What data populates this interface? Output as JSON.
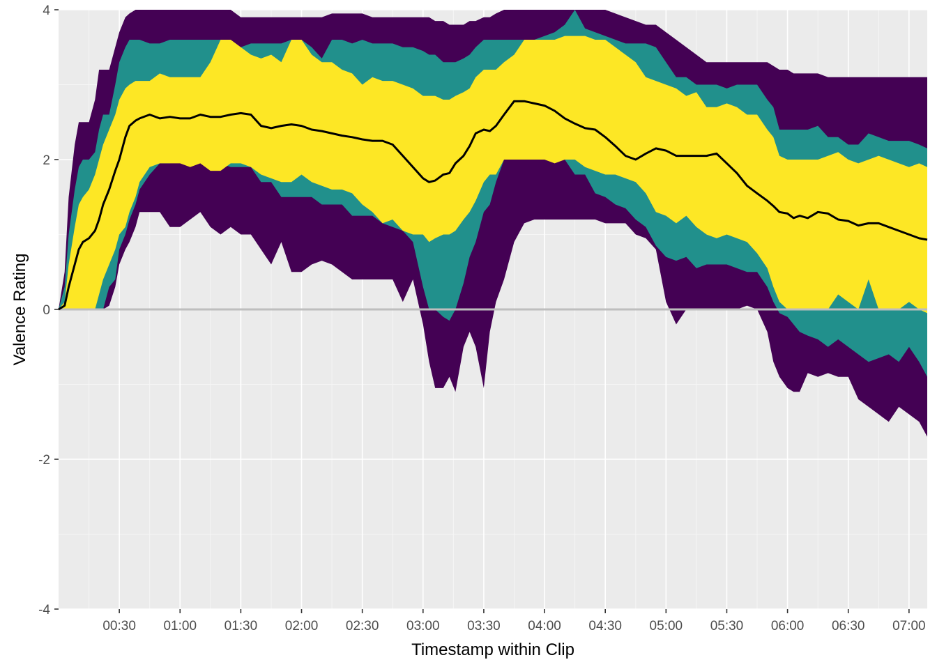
{
  "chart_data": {
    "type": "area",
    "xlabel": "Timestamp within Clip",
    "ylabel": "Valence Rating",
    "x_unit": "seconds",
    "xlim": [
      0,
      429
    ],
    "ylim": [
      -4,
      4
    ],
    "x_ticks": [
      {
        "value": 30,
        "label": "00:30"
      },
      {
        "value": 60,
        "label": "01:00"
      },
      {
        "value": 90,
        "label": "01:30"
      },
      {
        "value": 120,
        "label": "02:00"
      },
      {
        "value": 150,
        "label": "02:30"
      },
      {
        "value": 180,
        "label": "03:00"
      },
      {
        "value": 210,
        "label": "03:30"
      },
      {
        "value": 240,
        "label": "04:00"
      },
      {
        "value": 270,
        "label": "04:30"
      },
      {
        "value": 300,
        "label": "05:00"
      },
      {
        "value": 330,
        "label": "05:30"
      },
      {
        "value": 360,
        "label": "06:00"
      },
      {
        "value": 390,
        "label": "06:30"
      },
      {
        "value": 420,
        "label": "07:00"
      }
    ],
    "y_ticks": [
      {
        "value": -4,
        "label": "-4"
      },
      {
        "value": -2,
        "label": "-2"
      },
      {
        "value": 0,
        "label": "0"
      },
      {
        "value": 2,
        "label": "2"
      },
      {
        "value": 4,
        "label": "4"
      }
    ],
    "reference_line": {
      "y": 0,
      "color": "#bebebe"
    },
    "grid": true,
    "legend": "none",
    "x": [
      0,
      3,
      5,
      8,
      10,
      12,
      15,
      18,
      20,
      22,
      25,
      28,
      30,
      33,
      35,
      38,
      40,
      45,
      50,
      55,
      60,
      65,
      70,
      75,
      80,
      85,
      90,
      95,
      100,
      105,
      110,
      115,
      120,
      125,
      130,
      135,
      140,
      145,
      150,
      155,
      160,
      165,
      170,
      175,
      180,
      183,
      186,
      190,
      193,
      196,
      200,
      203,
      206,
      210,
      213,
      216,
      220,
      225,
      230,
      235,
      240,
      245,
      250,
      255,
      260,
      265,
      270,
      275,
      280,
      285,
      290,
      295,
      300,
      305,
      310,
      315,
      320,
      325,
      330,
      335,
      340,
      345,
      350,
      353,
      356,
      360,
      363,
      366,
      370,
      375,
      380,
      385,
      390,
      395,
      400,
      405,
      410,
      415,
      420,
      425,
      429
    ],
    "series": [
      {
        "name": "",
        "color": "#440154",
        "upper": [
          0,
          0.5,
          1.5,
          2.2,
          2.5,
          2.5,
          2.5,
          2.8,
          3.2,
          3.2,
          3.2,
          3.5,
          3.7,
          3.9,
          3.95,
          4,
          4,
          4,
          4,
          4,
          4,
          4,
          4,
          4,
          4,
          4,
          3.9,
          3.9,
          3.9,
          3.9,
          3.9,
          3.9,
          3.9,
          3.9,
          3.9,
          3.95,
          3.95,
          3.95,
          3.95,
          3.9,
          3.9,
          3.9,
          3.9,
          3.9,
          3.9,
          3.9,
          3.85,
          3.85,
          3.8,
          3.8,
          3.8,
          3.85,
          3.85,
          3.9,
          3.9,
          3.95,
          4,
          4,
          4,
          4,
          4,
          4,
          4,
          4,
          4,
          4,
          4,
          3.95,
          3.9,
          3.85,
          3.8,
          3.8,
          3.7,
          3.6,
          3.5,
          3.4,
          3.3,
          3.3,
          3.3,
          3.3,
          3.3,
          3.3,
          3.3,
          3.25,
          3.2,
          3.2,
          3.15,
          3.15,
          3.15,
          3.15,
          3.1,
          3.1,
          3.1,
          3.1,
          3.1,
          3.1,
          3.1,
          3.1,
          3.1,
          3.1,
          3.1
        ],
        "lower": [
          0,
          0,
          0,
          0,
          0,
          0,
          0,
          0,
          0,
          0,
          0.05,
          0.3,
          0.6,
          0.8,
          0.9,
          1.1,
          1.3,
          1.3,
          1.3,
          1.1,
          1.1,
          1.2,
          1.3,
          1.1,
          1.0,
          1.1,
          1.0,
          1.0,
          0.8,
          0.6,
          0.9,
          0.5,
          0.5,
          0.6,
          0.65,
          0.6,
          0.5,
          0.4,
          0.4,
          0.4,
          0.4,
          0.4,
          0.1,
          0.4,
          -0.2,
          -0.7,
          -1.05,
          -1.05,
          -0.9,
          -1.1,
          -0.5,
          -0.3,
          -0.5,
          -1.05,
          -0.3,
          0.1,
          0.4,
          0.9,
          1.15,
          1.2,
          1.2,
          1.2,
          1.2,
          1.2,
          1.2,
          1.2,
          1.15,
          1.15,
          1.15,
          1.0,
          0.95,
          0.8,
          0.1,
          -0.2,
          0,
          0,
          0,
          0,
          0,
          0,
          0.05,
          0,
          -0.3,
          -0.7,
          -0.9,
          -1.05,
          -1.1,
          -1.1,
          -0.85,
          -0.9,
          -0.85,
          -0.9,
          -0.9,
          -1.2,
          -1.3,
          -1.4,
          -1.5,
          -1.3,
          -1.4,
          -1.5,
          -1.7
        ]
      },
      {
        "name": "",
        "color": "#21908c",
        "upper": [
          0,
          0.3,
          1.0,
          1.6,
          1.9,
          2.0,
          2.0,
          2.1,
          2.4,
          2.6,
          2.6,
          3.0,
          3.3,
          3.5,
          3.6,
          3.6,
          3.6,
          3.55,
          3.55,
          3.6,
          3.6,
          3.6,
          3.6,
          3.6,
          3.6,
          3.55,
          3.5,
          3.55,
          3.55,
          3.55,
          3.55,
          3.6,
          3.6,
          3.5,
          3.35,
          3.6,
          3.6,
          3.55,
          3.6,
          3.55,
          3.55,
          3.55,
          3.5,
          3.5,
          3.45,
          3.4,
          3.4,
          3.3,
          3.3,
          3.3,
          3.35,
          3.4,
          3.5,
          3.6,
          3.6,
          3.6,
          3.6,
          3.6,
          3.6,
          3.6,
          3.65,
          3.7,
          3.8,
          4.0,
          3.75,
          3.7,
          3.65,
          3.6,
          3.55,
          3.55,
          3.55,
          3.5,
          3.3,
          3.1,
          3.1,
          3.0,
          3.0,
          3.0,
          2.95,
          3.0,
          3.0,
          3.0,
          2.8,
          2.7,
          2.4,
          2.4,
          2.4,
          2.4,
          2.4,
          2.45,
          2.3,
          2.3,
          2.2,
          2.2,
          2.35,
          2.3,
          2.25,
          2.25,
          2.25,
          2.2,
          2.15
        ],
        "lower": [
          0,
          0,
          0,
          0,
          0,
          0,
          0,
          0,
          0,
          0,
          0.3,
          0.4,
          0.8,
          1.0,
          1.2,
          1.4,
          1.6,
          1.8,
          1.95,
          1.95,
          2.0,
          1.9,
          2.0,
          1.85,
          1.95,
          1.9,
          1.9,
          1.9,
          1.7,
          1.7,
          1.5,
          1.5,
          1.5,
          1.5,
          1.4,
          1.4,
          1.4,
          1.25,
          1.25,
          1.25,
          1.15,
          1.1,
          1.05,
          0.9,
          0.3,
          0,
          0,
          -0.1,
          -0.15,
          0,
          0.35,
          0.7,
          0.9,
          1.3,
          1.4,
          1.7,
          2.0,
          2.05,
          2.2,
          2.2,
          2.2,
          2.1,
          2.0,
          1.8,
          1.8,
          1.55,
          1.5,
          1.4,
          1.35,
          1.2,
          1.1,
          0.85,
          0.7,
          0.65,
          0.7,
          0.55,
          0.6,
          0.6,
          0.6,
          0.55,
          0.5,
          0.5,
          0.3,
          0.1,
          -0.05,
          -0.1,
          -0.2,
          -0.3,
          -0.35,
          -0.4,
          -0.5,
          -0.4,
          -0.5,
          -0.6,
          -0.7,
          -0.65,
          -0.6,
          -0.7,
          -0.5,
          -0.7,
          -0.9
        ]
      },
      {
        "name": "",
        "color": "#fde725",
        "upper": [
          0,
          0.1,
          0.6,
          1.1,
          1.4,
          1.5,
          1.6,
          1.8,
          2.0,
          2.2,
          2.4,
          2.6,
          2.8,
          2.95,
          3.0,
          3.05,
          3.05,
          3.05,
          3.15,
          3.1,
          3.1,
          3.1,
          3.1,
          3.3,
          3.6,
          3.6,
          3.5,
          3.4,
          3.35,
          3.4,
          3.3,
          3.6,
          3.6,
          3.4,
          3.3,
          3.3,
          3.2,
          3.15,
          3.0,
          3.1,
          3.05,
          3.05,
          3.0,
          2.95,
          2.85,
          2.85,
          2.85,
          2.8,
          2.8,
          2.85,
          2.9,
          2.95,
          3.1,
          3.2,
          3.2,
          3.2,
          3.3,
          3.4,
          3.6,
          3.6,
          3.6,
          3.6,
          3.65,
          3.65,
          3.65,
          3.6,
          3.6,
          3.5,
          3.4,
          3.3,
          3.1,
          3.05,
          3.0,
          2.95,
          2.85,
          2.9,
          2.7,
          2.7,
          2.75,
          2.7,
          2.6,
          2.6,
          2.4,
          2.3,
          2.05,
          2.0,
          2.0,
          2.0,
          2.0,
          2.0,
          2.05,
          2.1,
          2.0,
          1.95,
          2.0,
          2.05,
          2.0,
          1.95,
          1.9,
          1.95,
          1.9
        ],
        "lower": [
          0,
          0,
          0,
          0,
          0,
          0,
          0,
          0,
          0.2,
          0.4,
          0.6,
          0.8,
          1.0,
          1.1,
          1.3,
          1.5,
          1.7,
          1.9,
          1.95,
          1.95,
          1.95,
          1.9,
          1.95,
          1.85,
          1.85,
          1.95,
          1.95,
          1.9,
          1.8,
          1.75,
          1.7,
          1.7,
          1.8,
          1.7,
          1.65,
          1.6,
          1.6,
          1.55,
          1.4,
          1.3,
          1.15,
          1.2,
          1.05,
          1.0,
          1.0,
          0.9,
          0.95,
          1.0,
          1.0,
          1.05,
          1.2,
          1.3,
          1.45,
          1.7,
          1.8,
          1.8,
          2.0,
          2.0,
          2.0,
          2.0,
          2.0,
          1.95,
          2.0,
          2.0,
          1.9,
          1.85,
          1.8,
          1.8,
          1.75,
          1.7,
          1.55,
          1.3,
          1.25,
          1.15,
          1.25,
          1.1,
          1.0,
          0.95,
          1.0,
          0.95,
          0.9,
          0.75,
          0.55,
          0.3,
          0.1,
          0,
          0,
          0,
          0,
          0,
          0,
          0.2,
          0.1,
          0,
          0.4,
          0,
          0,
          0,
          0.1,
          0,
          -0.05
        ]
      }
    ],
    "line": {
      "name": "",
      "color": "#000000",
      "values": [
        0,
        0.05,
        0.3,
        0.6,
        0.8,
        0.9,
        0.95,
        1.05,
        1.2,
        1.4,
        1.6,
        1.85,
        2.0,
        2.3,
        2.45,
        2.52,
        2.55,
        2.6,
        2.55,
        2.57,
        2.55,
        2.55,
        2.6,
        2.57,
        2.57,
        2.6,
        2.62,
        2.6,
        2.45,
        2.42,
        2.45,
        2.47,
        2.45,
        2.4,
        2.38,
        2.35,
        2.32,
        2.3,
        2.27,
        2.25,
        2.25,
        2.2,
        2.05,
        1.9,
        1.75,
        1.7,
        1.72,
        1.8,
        1.82,
        1.95,
        2.05,
        2.18,
        2.35,
        2.4,
        2.38,
        2.45,
        2.6,
        2.78,
        2.78,
        2.75,
        2.72,
        2.65,
        2.55,
        2.48,
        2.42,
        2.4,
        2.3,
        2.18,
        2.05,
        2.0,
        2.08,
        2.15,
        2.12,
        2.05,
        2.05,
        2.05,
        2.05,
        2.08,
        1.95,
        1.82,
        1.65,
        1.55,
        1.45,
        1.38,
        1.3,
        1.28,
        1.22,
        1.25,
        1.22,
        1.3,
        1.28,
        1.2,
        1.18,
        1.12,
        1.15,
        1.15,
        1.1,
        1.05,
        1.0,
        0.95,
        0.93
      ]
    }
  }
}
